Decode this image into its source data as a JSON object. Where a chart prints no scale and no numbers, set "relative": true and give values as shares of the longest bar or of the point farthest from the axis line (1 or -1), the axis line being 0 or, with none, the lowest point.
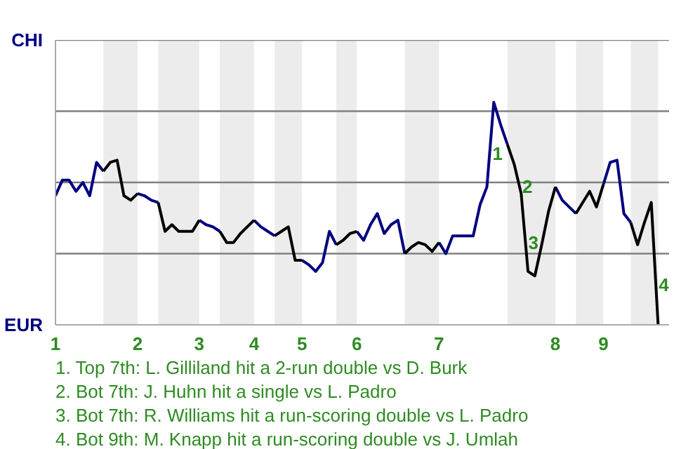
{
  "chart_data": {
    "type": "line",
    "relative": true,
    "categories": [
      "1",
      null,
      null,
      null,
      null,
      null,
      null,
      null,
      null,
      null,
      null,
      null,
      "2",
      null,
      null,
      null,
      null,
      null,
      null,
      null,
      null,
      "3",
      null,
      null,
      null,
      null,
      null,
      null,
      null,
      "4",
      null,
      null,
      null,
      null,
      null,
      null,
      "5",
      null,
      null,
      null,
      null,
      null,
      null,
      null,
      "6",
      null,
      null,
      null,
      null,
      null,
      null,
      null,
      null,
      null,
      null,
      null,
      "7",
      null,
      null,
      null,
      null,
      null,
      null,
      null,
      null,
      null,
      null,
      null,
      null,
      null,
      null,
      null,
      null,
      "8",
      null,
      null,
      null,
      null,
      null,
      null,
      "9",
      null,
      null,
      null,
      null,
      null,
      null,
      null,
      null
    ],
    "series": [
      {
        "color": "#000080",
        "values": [
          0.58,
          0.65,
          0.65,
          0.6,
          0.64,
          0.58,
          0.73,
          0.69,
          null,
          null,
          null,
          null,
          0.59,
          0.58,
          0.56,
          0.55,
          null,
          null,
          null,
          null,
          null,
          0.47,
          0.45,
          0.44,
          0.42,
          null,
          null,
          null,
          null,
          0.47,
          0.44,
          0.42,
          0.4,
          null,
          null,
          null,
          0.29,
          0.27,
          0.24,
          0.28,
          0.42,
          0.36,
          null,
          null,
          0.42,
          0.38,
          0.45,
          0.5,
          0.41,
          0.45,
          0.47,
          0.32,
          null,
          null,
          null,
          null,
          0.37,
          0.32,
          0.4,
          0.4,
          0.4,
          0.4,
          0.54,
          0.62,
          1,
          0.9,
          0.81,
          null,
          null,
          null,
          null,
          null,
          null,
          0.62,
          0.56,
          0.53,
          0.5,
          null,
          null,
          null,
          0.63,
          0.73,
          0.74,
          0.5,
          0.46,
          null,
          null,
          null,
          null
        ]
      },
      {
        "color": "#000000",
        "values": [
          null,
          null,
          null,
          null,
          null,
          null,
          null,
          0.69,
          0.73,
          0.74,
          0.58,
          0.56,
          0.59,
          null,
          null,
          0.55,
          0.42,
          0.45,
          0.42,
          0.42,
          0.42,
          0.47,
          null,
          null,
          0.42,
          0.37,
          0.37,
          0.41,
          0.44,
          0.47,
          null,
          null,
          0.4,
          0.42,
          0.44,
          0.29,
          0.29,
          null,
          null,
          null,
          null,
          0.36,
          0.38,
          0.41,
          0.42,
          null,
          null,
          null,
          null,
          null,
          null,
          0.32,
          0.35,
          0.37,
          0.36,
          0.33,
          0.37,
          null,
          null,
          null,
          null,
          null,
          null,
          null,
          null,
          null,
          0.81,
          0.72,
          0.59,
          0.24,
          0.22,
          0.36,
          0.51,
          0.62,
          null,
          null,
          0.5,
          0.55,
          0.6,
          0.53,
          0.63,
          null,
          null,
          null,
          0.46,
          0.36,
          0.46,
          0.55,
          0
        ]
      }
    ],
    "ref_lines": [
      {
        "axis": "y",
        "value": 0.32,
        "color": "#808080"
      },
      {
        "axis": "y",
        "value": 0.64,
        "color": "#808080"
      },
      {
        "axis": "y",
        "value": 0.96,
        "color": "#808080"
      },
      {
        "axis": "y",
        "value": 1.28,
        "color": "#808080"
      }
    ],
    "annotations": [
      "CHI",
      "EUR",
      {
        "text": "1",
        "y": 0.77
      },
      {
        "text": "2",
        "y": 0.62
      },
      {
        "text": "3",
        "y": 0.37
      },
      {
        "text": "4",
        "y": 0.18
      },
      "1. Top 7th: L. Gilliland hit a 2-run double vs D. Burk",
      "2. Bot 7th: J. Huhn hit a single vs L. Padro",
      "3. Bot 7th: R. Williams hit a run-scoring double vs L. Padro",
      "4. Bot 9th: M. Knapp hit a run-scoring double vs J. Umlah"
    ]
  }
}
